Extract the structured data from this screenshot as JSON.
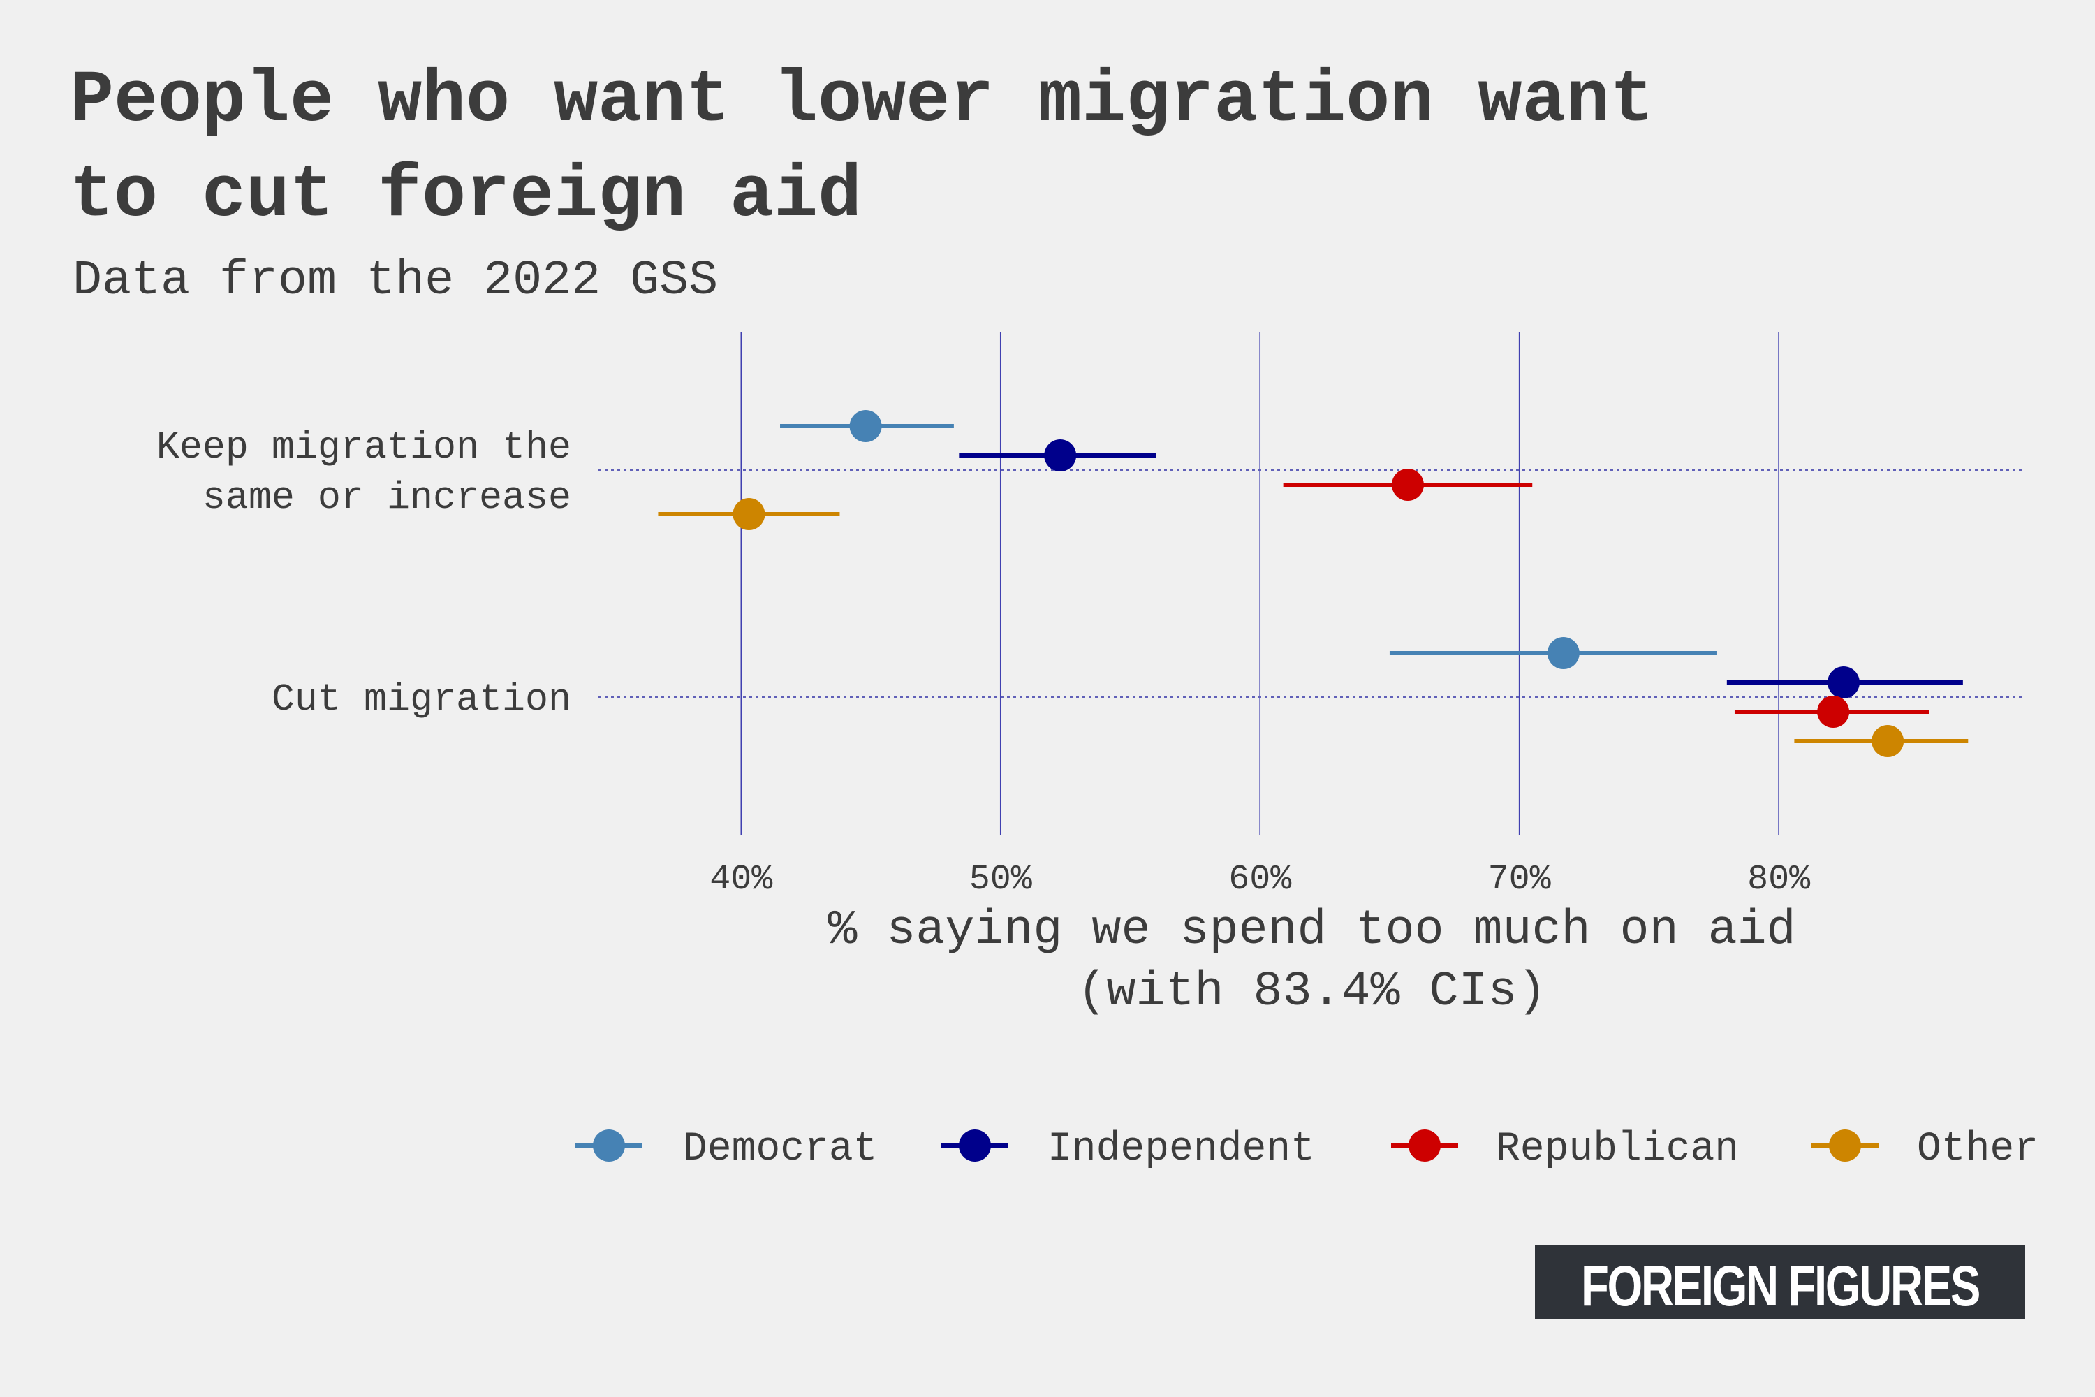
{
  "title_line1": "People who want lower migration want",
  "title_line2": "to cut foreign aid",
  "subtitle": "Data from the 2022 GSS",
  "brand": "FOREIGN FIGURES",
  "chart_data": {
    "type": "scatter",
    "orientation": "horizontal",
    "error_bars": true,
    "categories": [
      {
        "label_lines": [
          "Keep migration the",
          "same or increase"
        ]
      },
      {
        "label_lines": [
          "Cut migration"
        ]
      }
    ],
    "xlim": [
      34.5,
      89.5
    ],
    "x_ticks": [
      40,
      50,
      60,
      70,
      80
    ],
    "x_tick_labels": [
      "40%",
      "50%",
      "60%",
      "70%",
      "80%"
    ],
    "xlabel_line1": "% saying we spend too much on aid",
    "xlabel_line2": "(with 83.4% CIs)",
    "grid": true,
    "legend_position": "bottom",
    "series": [
      {
        "name": "Democrat",
        "color": "#4682b4",
        "values": [
          44.8,
          71.7
        ],
        "lower": [
          41.5,
          65.0
        ],
        "upper": [
          48.2,
          77.6
        ]
      },
      {
        "name": "Independent",
        "color": "#00008b",
        "values": [
          52.3,
          82.5
        ],
        "lower": [
          48.4,
          78.0
        ],
        "upper": [
          56.0,
          87.1
        ]
      },
      {
        "name": "Republican",
        "color": "#cd0000",
        "values": [
          65.7,
          82.1
        ],
        "lower": [
          60.9,
          78.3
        ],
        "upper": [
          70.5,
          85.8
        ]
      },
      {
        "name": "Other",
        "color": "#cd8500",
        "values": [
          40.3,
          84.2
        ],
        "lower": [
          36.8,
          80.6
        ],
        "upper": [
          43.8,
          87.3
        ]
      }
    ]
  }
}
